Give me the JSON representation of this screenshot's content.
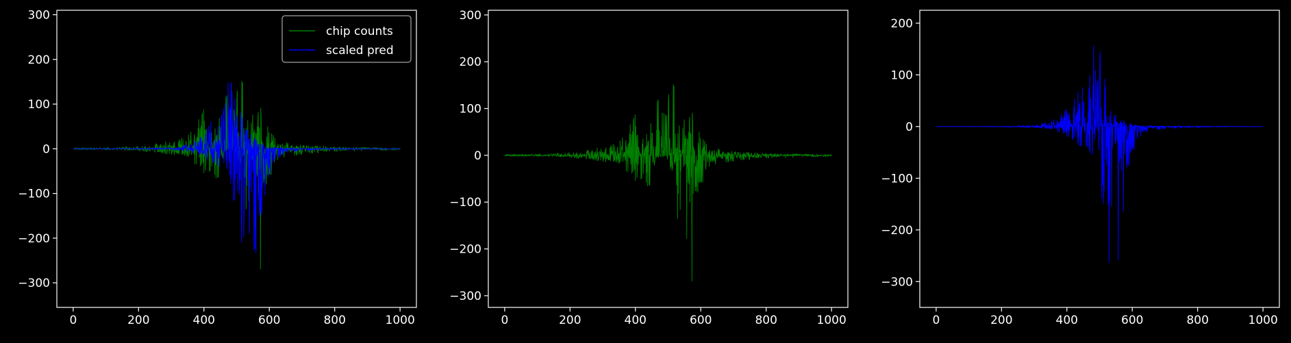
{
  "colors": {
    "background": "#000000",
    "axes": "#ffffff",
    "chip_counts": "#008000",
    "scaled_pred": "#0000ff"
  },
  "legend": {
    "placement": "top-right",
    "entries": [
      "chip counts",
      "scaled pred"
    ]
  },
  "chart_data": [
    {
      "type": "line",
      "title": "",
      "xlabel": "",
      "ylabel": "",
      "xlim": [
        -50,
        1050
      ],
      "ylim": [
        -355,
        310
      ],
      "xticks": [
        0,
        200,
        400,
        600,
        800,
        1000
      ],
      "xtick_labels": [
        "0",
        "200",
        "400",
        "600",
        "800",
        "1000"
      ],
      "yticks": [
        300,
        200,
        100,
        0,
        -100,
        -200,
        -300
      ],
      "ytick_labels": [
        "300",
        "200",
        "100",
        "0",
        "−100",
        "−200",
        "−300"
      ],
      "grid": false,
      "legend": true,
      "series": [
        {
          "name": "chip counts",
          "color": "#008000",
          "x_range": [
            0,
            1000
          ],
          "envelope": {
            "x": [
              0,
              150,
              250,
              300,
              350,
              380,
              400,
              420,
              440,
              455,
              460,
              470,
              480,
              500,
              520,
              540,
              560,
              575,
              580,
              600,
              620,
              650,
              700,
              800,
              900,
              1000
            ],
            "upper": [
              2,
              4,
              12,
              18,
              28,
              60,
              90,
              40,
              50,
              100,
              280,
              180,
              100,
              135,
              160,
              80,
              140,
              100,
              20,
              60,
              25,
              15,
              8,
              4,
              3,
              2
            ],
            "lower": [
              -2,
              -3,
              -8,
              -14,
              -20,
              -40,
              -55,
              -60,
              -70,
              -80,
              -10,
              -5,
              -5,
              -30,
              -60,
              -230,
              -200,
              -295,
              -120,
              -80,
              -30,
              -20,
              -12,
              -6,
              -4,
              -3
            ]
          }
        },
        {
          "name": "scaled pred",
          "color": "#0000ff",
          "x_range": [
            0,
            1000
          ],
          "envelope": {
            "x": [
              0,
              200,
              300,
              350,
              380,
              400,
              420,
              440,
              460,
              470,
              480,
              490,
              500,
              510,
              520,
              540,
              555,
              560,
              570,
              580,
              600,
              620,
              650,
              700,
              800,
              1000
            ],
            "upper": [
              0,
              1,
              3,
              10,
              22,
              35,
              60,
              75,
              95,
              150,
              195,
              110,
              160,
              130,
              70,
              40,
              25,
              20,
              15,
              10,
              5,
              3,
              2,
              1,
              1,
              0
            ],
            "lower": [
              0,
              -1,
              -2,
              -6,
              -12,
              -20,
              -30,
              -40,
              -55,
              -70,
              -80,
              -120,
              -170,
              -210,
              -260,
              -275,
              -328,
              -250,
              -190,
              -130,
              -60,
              -25,
              -10,
              -4,
              -2,
              0
            ]
          }
        }
      ]
    },
    {
      "type": "line",
      "title": "",
      "xlabel": "",
      "ylabel": "",
      "xlim": [
        -50,
        1050
      ],
      "ylim": [
        -325,
        310
      ],
      "xticks": [
        0,
        200,
        400,
        600,
        800,
        1000
      ],
      "xtick_labels": [
        "0",
        "200",
        "400",
        "600",
        "800",
        "1000"
      ],
      "yticks": [
        300,
        200,
        100,
        0,
        -100,
        -200,
        -300
      ],
      "ytick_labels": [
        "300",
        "200",
        "100",
        "0",
        "−100",
        "−200",
        "−300"
      ],
      "grid": false,
      "legend": false,
      "series": [
        {
          "name": "chip counts",
          "color": "#008000",
          "x_range": [
            0,
            1000
          ],
          "envelope": {
            "x": [
              0,
              150,
              250,
              300,
              350,
              380,
              400,
              420,
              440,
              455,
              460,
              470,
              480,
              500,
              520,
              540,
              560,
              575,
              580,
              600,
              620,
              650,
              700,
              800,
              900,
              1000
            ],
            "upper": [
              2,
              4,
              12,
              18,
              28,
              60,
              90,
              40,
              50,
              100,
              280,
              180,
              100,
              135,
              160,
              80,
              140,
              100,
              20,
              60,
              25,
              15,
              8,
              4,
              3,
              2
            ],
            "lower": [
              -2,
              -3,
              -8,
              -14,
              -20,
              -40,
              -55,
              -60,
              -70,
              -80,
              -10,
              -5,
              -5,
              -30,
              -60,
              -230,
              -200,
              -295,
              -120,
              -80,
              -30,
              -20,
              -12,
              -6,
              -4,
              -3
            ]
          }
        }
      ]
    },
    {
      "type": "line",
      "title": "",
      "xlabel": "",
      "ylabel": "",
      "xlim": [
        -50,
        1050
      ],
      "ylim": [
        -350,
        225
      ],
      "xticks": [
        0,
        200,
        400,
        600,
        800,
        1000
      ],
      "xtick_labels": [
        "0",
        "200",
        "400",
        "600",
        "800",
        "1000"
      ],
      "yticks": [
        200,
        100,
        0,
        -100,
        -200,
        -300
      ],
      "ytick_labels": [
        "200",
        "100",
        "0",
        "−100",
        "−200",
        "−300"
      ],
      "grid": false,
      "legend": false,
      "series": [
        {
          "name": "scaled pred",
          "color": "#0000ff",
          "x_range": [
            0,
            1000
          ],
          "envelope": {
            "x": [
              0,
              200,
              300,
              350,
              380,
              400,
              420,
              440,
              460,
              470,
              480,
              490,
              500,
              510,
              520,
              540,
              555,
              560,
              570,
              580,
              600,
              620,
              650,
              700,
              800,
              1000
            ],
            "upper": [
              0,
              1,
              3,
              10,
              22,
              35,
              60,
              75,
              95,
              150,
              195,
              110,
              160,
              130,
              70,
              40,
              25,
              20,
              15,
              10,
              5,
              3,
              2,
              1,
              1,
              0
            ],
            "lower": [
              0,
              -1,
              -2,
              -6,
              -12,
              -20,
              -30,
              -40,
              -55,
              -70,
              -80,
              -120,
              -170,
              -210,
              -260,
              -275,
              -328,
              -250,
              -190,
              -130,
              -60,
              -25,
              -10,
              -4,
              -2,
              0
            ]
          }
        }
      ]
    }
  ]
}
